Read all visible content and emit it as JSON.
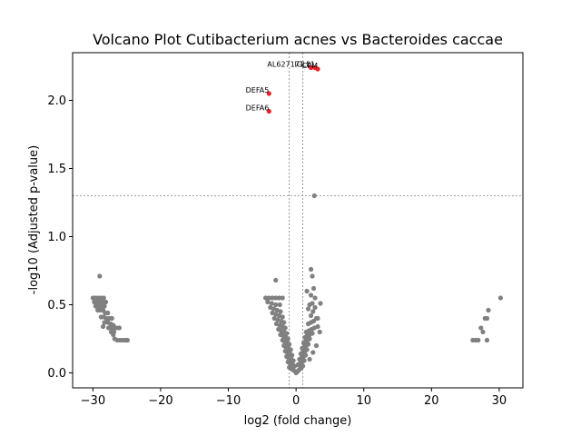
{
  "chart_data": {
    "type": "scatter",
    "title": "Volcano Plot Cutibacterium acnes vs Bacteroides caccae",
    "xlabel": "log2 (fold change)",
    "ylabel": "-log10 (Adjusted p-value)",
    "xlim": [
      -33,
      33.5
    ],
    "ylim": [
      -0.11,
      2.35
    ],
    "xticks": [
      -30,
      -20,
      -10,
      0,
      10,
      20,
      30
    ],
    "yticks": [
      0.0,
      0.5,
      1.0,
      1.5,
      2.0
    ],
    "xtick_labels": [
      "−30",
      "−20",
      "−10",
      "0",
      "10",
      "20",
      "30"
    ],
    "ytick_labels": [
      "0.0",
      "0.5",
      "1.0",
      "1.5",
      "2.0"
    ],
    "thresholds": {
      "vertical": [
        -1,
        1
      ],
      "horizontal": 1.3
    },
    "grid": false,
    "colors": {
      "significant": "#e8232a",
      "non_significant": "#808080",
      "threshold_line": "#808080"
    },
    "significant_points": [
      {
        "label": "AL627171.2",
        "x": 2.2,
        "y": 2.24
      },
      {
        "label": "IGLL1",
        "x": 2.8,
        "y": 2.24
      },
      {
        "label": "CPM",
        "x": 3.2,
        "y": 2.23
      },
      {
        "label": "DEFA5",
        "x": -4.0,
        "y": 2.05
      },
      {
        "label": "DEFA6",
        "x": -4.0,
        "y": 1.92
      }
    ],
    "annotations": [
      {
        "text": "AL627171.2",
        "x": 2.2,
        "y": 2.24
      },
      {
        "text": "IGLL1",
        "x": 2.8,
        "y": 2.24
      },
      {
        "text": "CPM",
        "x": 3.2,
        "y": 2.23
      },
      {
        "text": "DEFA5",
        "x": -4.0,
        "y": 2.05
      },
      {
        "text": "DEFA6",
        "x": -4.0,
        "y": 1.92
      }
    ],
    "points": [
      [
        -29.0,
        0.71
      ],
      [
        -30.0,
        0.55
      ],
      [
        -29.6,
        0.55
      ],
      [
        -29.2,
        0.55
      ],
      [
        -28.8,
        0.55
      ],
      [
        -28.4,
        0.55
      ],
      [
        -29.8,
        0.52
      ],
      [
        -29.4,
        0.52
      ],
      [
        -28.9,
        0.52
      ],
      [
        -28.5,
        0.52
      ],
      [
        -28.1,
        0.52
      ],
      [
        -29.6,
        0.49
      ],
      [
        -29.2,
        0.49
      ],
      [
        -28.7,
        0.49
      ],
      [
        -28.3,
        0.49
      ],
      [
        -29.3,
        0.46
      ],
      [
        -28.9,
        0.46
      ],
      [
        -28.5,
        0.46
      ],
      [
        -28.2,
        0.44
      ],
      [
        -27.8,
        0.44
      ],
      [
        -28.8,
        0.41
      ],
      [
        -28.4,
        0.41
      ],
      [
        -28.0,
        0.4
      ],
      [
        -27.6,
        0.4
      ],
      [
        -27.2,
        0.4
      ],
      [
        -28.3,
        0.37
      ],
      [
        -27.8,
        0.37
      ],
      [
        -27.4,
        0.36
      ],
      [
        -27.0,
        0.35
      ],
      [
        -28.5,
        0.34
      ],
      [
        -27.7,
        0.33
      ],
      [
        -27.3,
        0.33
      ],
      [
        -26.9,
        0.33
      ],
      [
        -26.5,
        0.33
      ],
      [
        -26.1,
        0.33
      ],
      [
        -27.3,
        0.3
      ],
      [
        -26.9,
        0.3
      ],
      [
        -27.0,
        0.28
      ],
      [
        -26.8,
        0.25
      ],
      [
        -26.4,
        0.24
      ],
      [
        -26.0,
        0.24
      ],
      [
        -25.6,
        0.24
      ],
      [
        -25.2,
        0.24
      ],
      [
        -24.9,
        0.24
      ],
      [
        -4.5,
        0.55
      ],
      [
        -4.0,
        0.55
      ],
      [
        -3.5,
        0.55
      ],
      [
        -3.0,
        0.55
      ],
      [
        -2.5,
        0.55
      ],
      [
        -2.0,
        0.55
      ],
      [
        -3.0,
        0.68
      ],
      [
        -4.2,
        0.52
      ],
      [
        -3.6,
        0.51
      ],
      [
        -3.0,
        0.5
      ],
      [
        -2.4,
        0.5
      ],
      [
        -3.8,
        0.48
      ],
      [
        -3.3,
        0.47
      ],
      [
        -2.8,
        0.46
      ],
      [
        -2.3,
        0.45
      ],
      [
        -3.5,
        0.44
      ],
      [
        -3.0,
        0.43
      ],
      [
        -2.5,
        0.42
      ],
      [
        -2.0,
        0.41
      ],
      [
        -3.2,
        0.4
      ],
      [
        -2.7,
        0.39
      ],
      [
        -2.2,
        0.38
      ],
      [
        -1.8,
        0.37
      ],
      [
        -2.9,
        0.36
      ],
      [
        -2.4,
        0.35
      ],
      [
        -2.0,
        0.34
      ],
      [
        -1.6,
        0.33
      ],
      [
        -2.6,
        0.32
      ],
      [
        -2.2,
        0.31
      ],
      [
        -1.8,
        0.3
      ],
      [
        -1.4,
        0.29
      ],
      [
        -2.3,
        0.28
      ],
      [
        -1.9,
        0.27
      ],
      [
        -1.5,
        0.26
      ],
      [
        -1.2,
        0.25
      ],
      [
        -2.0,
        0.24
      ],
      [
        -1.7,
        0.23
      ],
      [
        -1.3,
        0.22
      ],
      [
        -1.0,
        0.21
      ],
      [
        -1.8,
        0.2
      ],
      [
        -1.5,
        0.19
      ],
      [
        -1.1,
        0.18
      ],
      [
        -0.8,
        0.17
      ],
      [
        -1.6,
        0.16
      ],
      [
        -1.3,
        0.15
      ],
      [
        -0.9,
        0.14
      ],
      [
        -0.6,
        0.13
      ],
      [
        -1.4,
        0.12
      ],
      [
        -1.1,
        0.11
      ],
      [
        -0.7,
        0.1
      ],
      [
        -0.4,
        0.09
      ],
      [
        -1.2,
        0.08
      ],
      [
        -0.9,
        0.07
      ],
      [
        -0.5,
        0.06
      ],
      [
        -0.2,
        0.05
      ],
      [
        -1.0,
        0.04
      ],
      [
        -0.7,
        0.03
      ],
      [
        -0.4,
        0.02
      ],
      [
        -0.1,
        0.01
      ],
      [
        0.0,
        0.0
      ],
      [
        0.2,
        0.01
      ],
      [
        0.4,
        0.02
      ],
      [
        0.6,
        0.03
      ],
      [
        0.8,
        0.04
      ],
      [
        1.0,
        0.05
      ],
      [
        0.3,
        0.06
      ],
      [
        0.6,
        0.07
      ],
      [
        0.9,
        0.08
      ],
      [
        1.2,
        0.09
      ],
      [
        0.5,
        0.1
      ],
      [
        0.8,
        0.11
      ],
      [
        1.1,
        0.12
      ],
      [
        1.4,
        0.13
      ],
      [
        0.7,
        0.14
      ],
      [
        1.0,
        0.15
      ],
      [
        1.3,
        0.16
      ],
      [
        1.6,
        0.17
      ],
      [
        0.9,
        0.18
      ],
      [
        1.2,
        0.19
      ],
      [
        1.5,
        0.2
      ],
      [
        1.8,
        0.21
      ],
      [
        1.1,
        0.22
      ],
      [
        1.4,
        0.23
      ],
      [
        1.7,
        0.24
      ],
      [
        2.0,
        0.25
      ],
      [
        1.3,
        0.26
      ],
      [
        1.6,
        0.27
      ],
      [
        2.0,
        0.28
      ],
      [
        2.4,
        0.29
      ],
      [
        1.5,
        0.3
      ],
      [
        1.9,
        0.31
      ],
      [
        2.3,
        0.32
      ],
      [
        2.7,
        0.33
      ],
      [
        3.2,
        0.34
      ],
      [
        1.8,
        0.36
      ],
      [
        2.2,
        0.37
      ],
      [
        2.6,
        0.38
      ],
      [
        3.0,
        0.4
      ],
      [
        3.2,
        0.4
      ],
      [
        2.2,
        0.42
      ],
      [
        2.5,
        0.45
      ],
      [
        1.8,
        0.47
      ],
      [
        2.8,
        0.48
      ],
      [
        2.0,
        0.5
      ],
      [
        2.4,
        0.51
      ],
      [
        3.6,
        0.51
      ],
      [
        2.8,
        0.55
      ],
      [
        2.2,
        0.57
      ],
      [
        1.6,
        0.6
      ],
      [
        2.6,
        0.62
      ],
      [
        2.4,
        0.71
      ],
      [
        2.2,
        0.76
      ],
      [
        2.7,
        1.3
      ],
      [
        3.5,
        0.3
      ],
      [
        3.0,
        0.2
      ],
      [
        2.5,
        0.15
      ],
      [
        2.0,
        0.1
      ],
      [
        26.1,
        0.24
      ],
      [
        26.5,
        0.24
      ],
      [
        26.9,
        0.24
      ],
      [
        27.3,
        0.33
      ],
      [
        27.6,
        0.3
      ],
      [
        27.9,
        0.4
      ],
      [
        28.2,
        0.4
      ],
      [
        28.4,
        0.46
      ],
      [
        28.2,
        0.24
      ],
      [
        30.2,
        0.55
      ]
    ]
  }
}
